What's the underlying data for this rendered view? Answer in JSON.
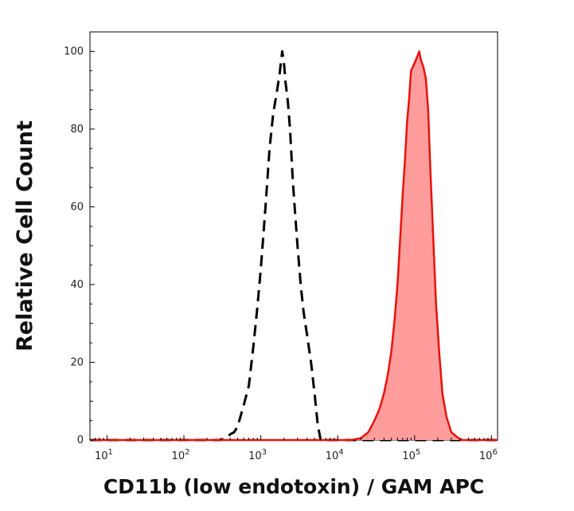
{
  "chart_data": {
    "type": "area",
    "title": "",
    "xlabel": "CD11b (low endotoxin) / GAM APC",
    "ylabel": "Relative Cell Count",
    "x_scale": "log",
    "xlim": [
      6,
      1200000
    ],
    "ylim": [
      0,
      105
    ],
    "x_ticks": [
      {
        "value": 10,
        "base": "10",
        "exp": "1"
      },
      {
        "value": 100,
        "base": "10",
        "exp": "2"
      },
      {
        "value": 1000,
        "base": "10",
        "exp": "3"
      },
      {
        "value": 10000,
        "base": "10",
        "exp": "4"
      },
      {
        "value": 100000,
        "base": "10",
        "exp": "5"
      },
      {
        "value": 1000000,
        "base": "10",
        "exp": "6"
      }
    ],
    "y_ticks": [
      0,
      20,
      40,
      60,
      80,
      100
    ],
    "y_tick_labels": [
      "0",
      "20",
      "40",
      "60",
      "80",
      "100"
    ],
    "grid": false,
    "legend": false,
    "series": [
      {
        "style": "dashed-outline",
        "color": "#000000",
        "x": [
          6,
          300,
          350,
          400,
          450,
          500,
          600,
          700,
          800,
          900,
          1000,
          1150,
          1300,
          1450,
          1600,
          1750,
          1900,
          2000,
          2100,
          2250,
          2400,
          2600,
          2800,
          3000,
          3300,
          3600,
          4000,
          4500,
          5000,
          5500,
          6000,
          1200000
        ],
        "y": [
          0,
          0,
          0.5,
          1.5,
          2,
          3.5,
          9,
          14,
          24,
          34,
          44,
          60,
          75,
          84,
          89,
          94,
          100,
          97,
          92,
          87,
          80,
          67,
          58,
          50,
          40,
          33,
          27,
          20,
          12,
          4,
          0,
          0
        ]
      },
      {
        "style": "filled",
        "color": "#e8120c",
        "fill": "#ff9d9d",
        "x": [
          6,
          15000,
          20000,
          25000,
          30000,
          35000,
          40000,
          45000,
          50000,
          55000,
          60000,
          65000,
          70000,
          75000,
          80000,
          85000,
          90000,
          95000,
          100000,
          105000,
          110000,
          115000,
          120000,
          130000,
          140000,
          150000,
          160000,
          175000,
          190000,
          210000,
          230000,
          260000,
          300000,
          400000,
          1200000
        ],
        "y": [
          0,
          0,
          0.5,
          2,
          5,
          8,
          12,
          17,
          23,
          31,
          40,
          52,
          63,
          72,
          82,
          88,
          95,
          96,
          97,
          98,
          99,
          100,
          98,
          96,
          93,
          85,
          70,
          52,
          35,
          22,
          12,
          6,
          2,
          0,
          0
        ]
      }
    ]
  }
}
